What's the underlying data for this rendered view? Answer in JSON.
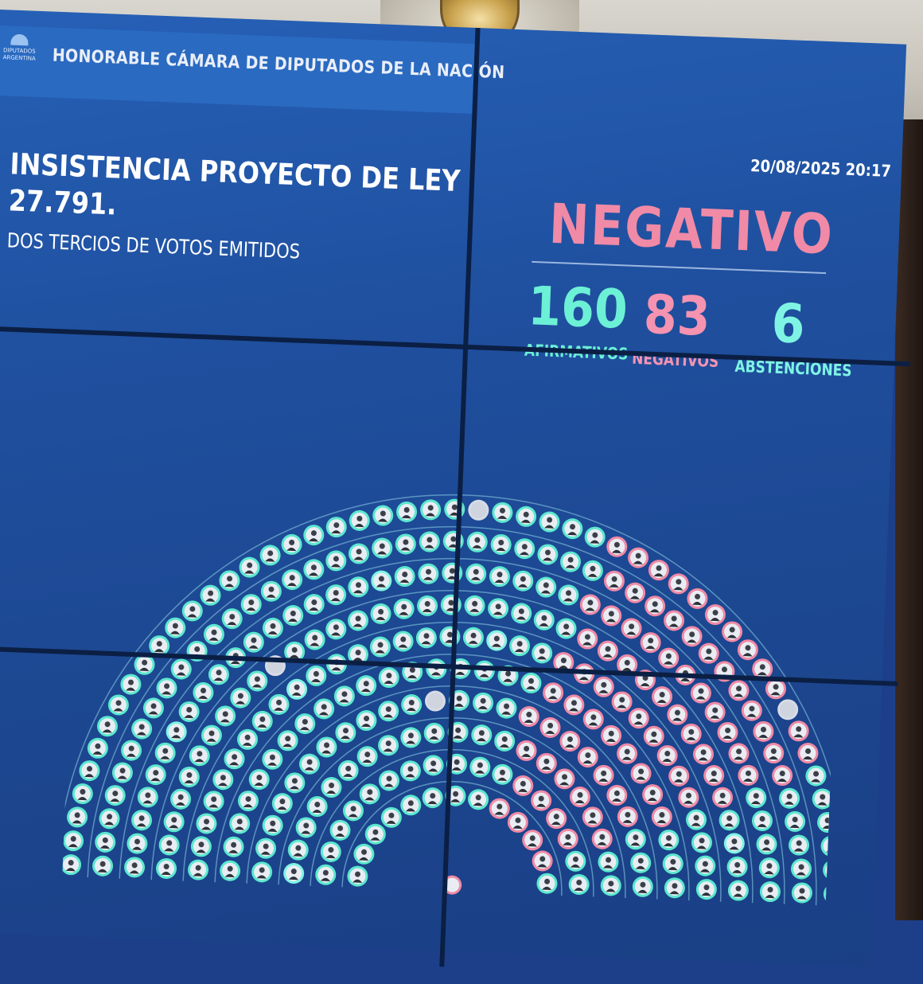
{
  "chamber": {
    "name": "HONORABLE CÁMARA DE DIPUTADOS DE LA NACIÓN",
    "logo_text": "DIPUTADOS ARGENTINA"
  },
  "vote": {
    "title_line1": "INSISTENCIA PROYECTO DE LEY",
    "title_line2": "27.791.",
    "majority": "DOS TERCIOS DE VOTOS EMITIDOS",
    "datetime": "20/08/2025 20:17",
    "result": "NEGATIVO"
  },
  "counts": {
    "affirmative": {
      "value": "160",
      "label": "AFIRMATIVOS"
    },
    "negative": {
      "value": "83",
      "label": "NEGATIVOS"
    },
    "abstention": {
      "value": "6",
      "label": "ABSTENCIONES"
    }
  },
  "colors": {
    "affirmative": "#5ce8cf",
    "negative": "#f08aa6",
    "abstention": "#7ff4e4",
    "absent": "#d7dbe6",
    "screen": "#1f4f9e"
  },
  "hemicycle": {
    "rows": 10,
    "legend": [
      "affirmative",
      "negative",
      "abstention",
      "absent"
    ]
  }
}
